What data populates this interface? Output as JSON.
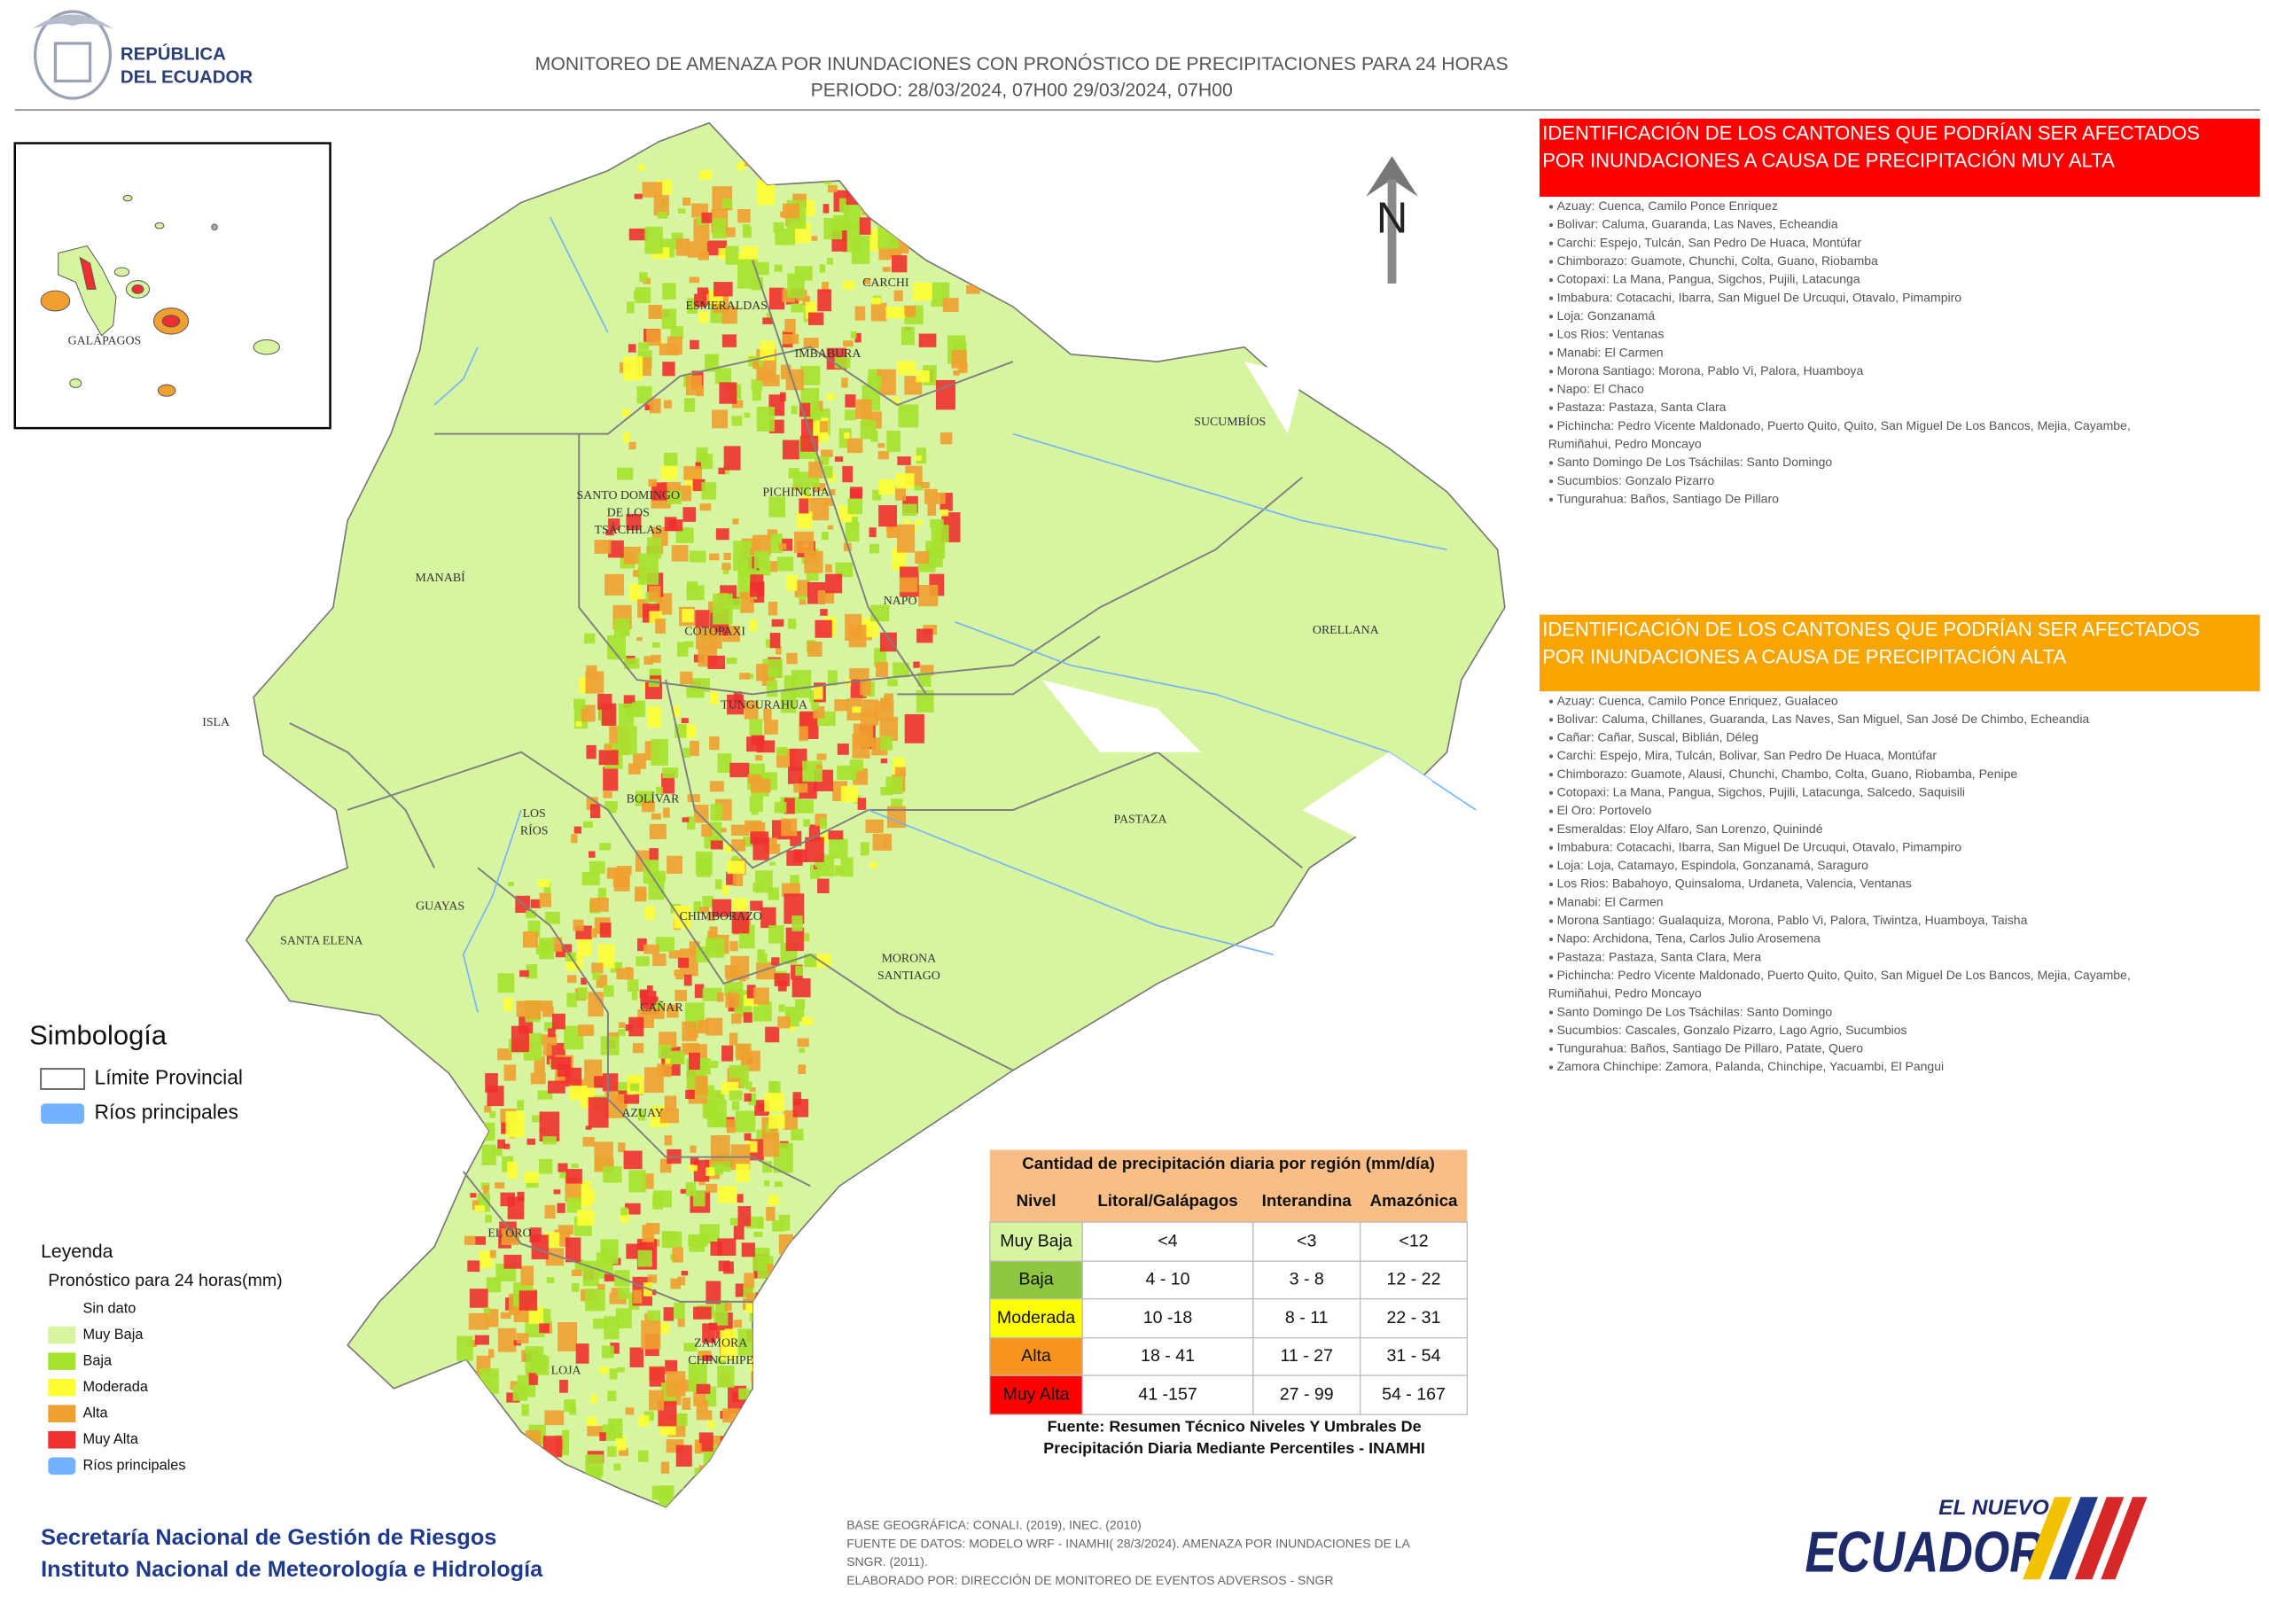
{
  "header": {
    "logo_text": [
      "REPÚBLICA",
      "DEL ECUADOR"
    ],
    "title": "MONITOREO DE AMENAZA POR INUNDACIONES  CON PRONÓSTICO DE  PRECIPITACIONES PARA 24 HORAS",
    "period": "PERIODO: 28/03/2024, 07H00 29/03/2024, 07H00"
  },
  "north": "N",
  "inset_label": "GALÁPAGOS",
  "map_labels": [
    [
      "ESMERALDAS"
    ],
    [
      "CARCHI"
    ],
    [
      "IMBABURA"
    ],
    [
      "SUCUMBÍOS"
    ],
    [
      "SANTO DOMINGO",
      "DE LOS",
      "TSÁCHILAS"
    ],
    [
      "PICHINCHA"
    ],
    [
      "MANABÍ"
    ],
    [
      "NAPO"
    ],
    [
      "ORELLANA"
    ],
    [
      "COTOPAXI"
    ],
    [
      "ISLA"
    ],
    [
      "TUNGURAHUA"
    ],
    [
      "BOLÍVAR"
    ],
    [
      "LOS",
      "RÍOS"
    ],
    [
      "PASTAZA"
    ],
    [
      "GUAYAS"
    ],
    [
      "SANTA ELENA"
    ],
    [
      "CHIMBORAZO"
    ],
    [
      "MORONA",
      "SANTIAGO"
    ],
    [
      "CAÑAR"
    ],
    [
      "AZUAY"
    ],
    [
      "EL ORO"
    ],
    [
      "ZAMORA",
      "CHINCHIPE"
    ],
    [
      "LOJA"
    ]
  ],
  "sections": [
    {
      "heading": [
        "IDENTIFICACIÓN DE LOS CANTONES QUE PODRÍAN SER AFECTADOS",
        "POR INUNDACIONES  A CAUSA DE PRECIPITACIÓN MUY ALTA"
      ],
      "items": [
        [
          "Azuay: Cuenca, Camilo Ponce Enriquez"
        ],
        [
          "Bolivar: Caluma, Guaranda, Las Naves, Echeandia"
        ],
        [
          "Carchi: Espejo, Tulcán, San Pedro De Huaca, Montúfar"
        ],
        [
          "Chimborazo: Guamote, Chunchi, Colta, Guano, Riobamba"
        ],
        [
          "Cotopaxi: La Mana, Pangua, Sigchos, Pujili, Latacunga"
        ],
        [
          "Imbabura: Cotacachi, Ibarra, San Miguel De Urcuqui, Otavalo, Pimampiro"
        ],
        [
          "Loja: Gonzanamá"
        ],
        [
          "Los Rios: Ventanas"
        ],
        [
          "Manabi: El Carmen"
        ],
        [
          "Morona Santiago: Morona, Pablo Vi, Palora, Huamboya"
        ],
        [
          "Napo: El Chaco"
        ],
        [
          "Pastaza: Pastaza, Santa Clara"
        ],
        [
          "Pichincha: Pedro Vicente Maldonado, Puerto Quito, Quito, San Miguel De Los Bancos, Mejia, Cayambe,",
          "Rumiñahui, Pedro Moncayo"
        ],
        [
          "Santo Domingo De Los Tsáchilas: Santo Domingo"
        ],
        [
          "Sucumbios: Gonzalo Pizarro"
        ],
        [
          "Tungurahua: Baños, Santiago De Pillaro"
        ]
      ]
    },
    {
      "heading": [
        "IDENTIFICACIÓN DE LOS CANTONES QUE  PODRÍAN SER AFECTADOS",
        "POR INUNDACIONES  A CAUSA DE PRECIPITACIÓN  ALTA"
      ],
      "items": [
        [
          "Azuay: Cuenca, Camilo Ponce Enriquez, Gualaceo"
        ],
        [
          "Bolivar: Caluma, Chillanes, Guaranda, Las Naves, San Miguel, San José De Chimbo, Echeandia"
        ],
        [
          "Cañar: Cañar, Suscal, Biblián, Déleg"
        ],
        [
          "Carchi: Espejo, Mira, Tulcán, Bolivar, San Pedro De Huaca, Montúfar"
        ],
        [
          "Chimborazo: Guamote, Alausi, Chunchi, Chambo, Colta, Guano, Riobamba, Penipe"
        ],
        [
          "Cotopaxi: La Mana, Pangua, Sigchos, Pujili, Latacunga, Salcedo, Saquisili"
        ],
        [
          "El Oro: Portovelo"
        ],
        [
          "Esmeraldas: Eloy Alfaro, San Lorenzo, Quinindé"
        ],
        [
          "Imbabura: Cotacachi, Ibarra, San Miguel De Urcuqui, Otavalo, Pimampiro"
        ],
        [
          "Loja: Loja, Catamayo, Espindola, Gonzanamá, Saraguro"
        ],
        [
          "Los Rios: Babahoyo, Quinsaloma, Urdaneta, Valencia, Ventanas"
        ],
        [
          "Manabi: El Carmen"
        ],
        [
          "Morona Santiago: Gualaquiza, Morona, Pablo Vi, Palora, Tiwintza, Huamboya, Taisha"
        ],
        [
          "Napo: Archidona, Tena, Carlos Julio Arosemena"
        ],
        [
          "Pastaza: Pastaza, Santa Clara, Mera"
        ],
        [
          "Pichincha: Pedro Vicente Maldonado, Puerto Quito, Quito, San Miguel De Los Bancos, Mejia, Cayambe,",
          "Rumiñahui, Pedro Moncayo"
        ],
        [
          "Santo Domingo De Los Tsáchilas: Santo Domingo"
        ],
        [
          "Sucumbios: Cascales, Gonzalo Pizarro, Lago Agrio, Sucumbios"
        ],
        [
          "Tungurahua: Baños, Santiago De Pillaro, Patate, Quero"
        ],
        [
          "Zamora Chinchipe: Zamora, Palanda, Chinchipe, Yacuambi, El Pangui"
        ]
      ]
    }
  ],
  "symbology": {
    "title": "Simbología",
    "items": [
      "Límite Provincial",
      "Ríos principales"
    ]
  },
  "legend": {
    "title": "Leyenda",
    "subtitle": "Pronóstico para 24 horas(mm)",
    "items": [
      "Sin dato",
      "Muy Baja",
      "Baja",
      "Moderada",
      "Alta",
      "Muy Alta",
      "Ríos principales"
    ]
  },
  "table": {
    "title": "Cantidad de precipitación diaria por región (mm/día)",
    "header": [
      "Nivel",
      "Litoral/Galápagos",
      "Interandina",
      "Amazónica"
    ],
    "rows": [
      [
        "Muy Baja",
        "<4",
        "<3",
        "<12"
      ],
      [
        "Baja",
        "4 - 10",
        "3 - 8",
        "12 - 22"
      ],
      [
        "Moderada",
        "10 -18",
        "8 - 11",
        "22 - 31"
      ],
      [
        "Alta",
        "18 - 41",
        "11 - 27",
        "31 - 54"
      ],
      [
        "Muy Alta",
        "41 -157",
        "27 - 99",
        "54 - 167"
      ]
    ],
    "source": [
      "Fuente: Resumen Técnico Niveles Y Umbrales De",
      "Precipitación Diaria Mediante Percentiles - INAMHI"
    ]
  },
  "footer": {
    "organizations": [
      "Secretaría Nacional de Gestión de Riesgos",
      "Instituto Nacional de Meteorología e Hidrología"
    ],
    "notes": [
      "BASE GEOGRÁFICA: CONALI. (2019), INEC. (2010)",
      "FUENTE DE DATOS: MODELO WRF - INAMHI( 28/3/2024).  AMENAZA POR INUNDACIONES DE LA",
      "SNGR. (2011).",
      "ELABORADO POR: DIRECCIÓN DE MONITOREO DE EVENTOS ADVERSOS - SNGR"
    ],
    "brand": [
      "EL NUEVO",
      "ECUADOR"
    ]
  }
}
